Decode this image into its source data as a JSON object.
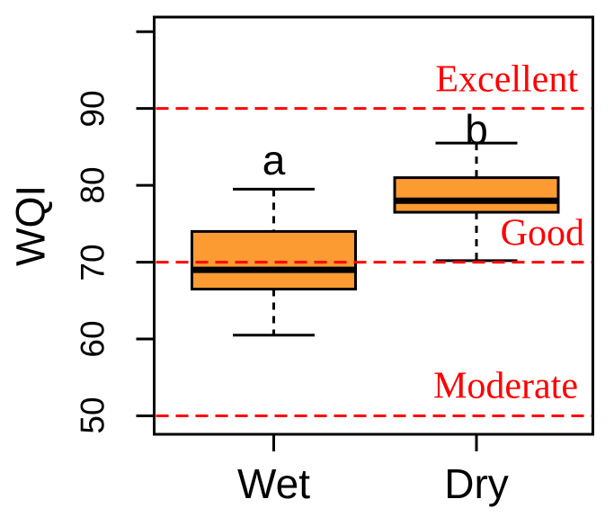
{
  "chart_data": {
    "type": "boxplot",
    "title": "",
    "ylabel": "WQI",
    "xlabel": "",
    "categories": [
      "Wet",
      "Dry"
    ],
    "ylim": [
      47.6,
      101.9
    ],
    "y_ticks": [
      50,
      60,
      70,
      80,
      90
    ],
    "y_unlabeled_ticks": [
      100
    ],
    "grid": false,
    "legend": "none",
    "boxes": [
      {
        "category": "Wet",
        "whisker_low": 60.5,
        "q1": 66.5,
        "median": 69,
        "q3": 74,
        "whisker_high": 79.5,
        "sig_letter": "a",
        "sig_letter_y": 83.3
      },
      {
        "category": "Dry",
        "whisker_low": 70.2,
        "q1": 76.5,
        "median": 78,
        "q3": 81,
        "whisker_high": 85.5,
        "sig_letter": "b",
        "sig_letter_y": 87.3
      }
    ],
    "reference_lines": [
      {
        "value": 90,
        "label": "Excellent",
        "label_y": 92.1
      },
      {
        "value": 70,
        "label": "Good",
        "label_y": 72.0
      },
      {
        "value": 50,
        "label": "Moderate",
        "label_y": 52.2
      }
    ],
    "colors": {
      "box_fill": "#FB9B32",
      "box_stroke": "#000000",
      "median": "#000000",
      "whisker": "#000000",
      "reference": "#FF0000",
      "axis": "#000000",
      "background": "#FFFFFF"
    }
  }
}
